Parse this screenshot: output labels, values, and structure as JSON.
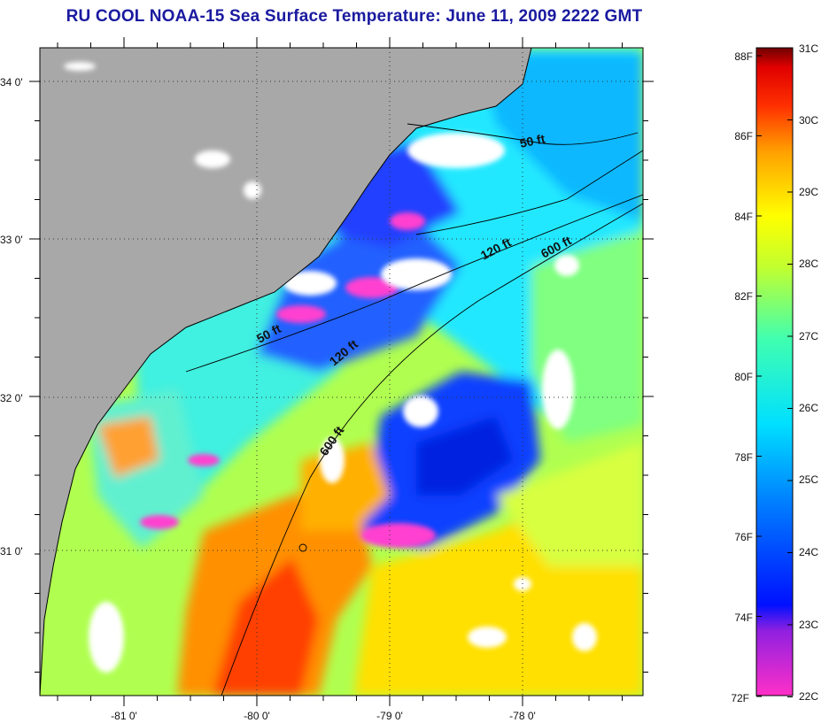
{
  "title": "RU COOL  NOAA-15  Sea Surface Temperature:  June 11, 2009 2222 GMT",
  "axes": {
    "lon_labels": [
      "-81 0'",
      "-80 0'",
      "-79 0'",
      "-78 0'"
    ],
    "lat_labels": [
      "34 0'",
      "33 0'",
      "32 0'",
      "31 0'"
    ]
  },
  "depth_contours": [
    {
      "label": "50 ft"
    },
    {
      "label": "50 ft"
    },
    {
      "label": "120 ft"
    },
    {
      "label": "120 ft"
    },
    {
      "label": "600 ft"
    },
    {
      "label": "600 ft"
    }
  ],
  "colorbar": {
    "fahrenheit_labels": [
      "88F",
      "86F",
      "84F",
      "82F",
      "80F",
      "78F",
      "76F",
      "74F",
      "72F"
    ],
    "celsius_labels": [
      "31C",
      "30C",
      "29C",
      "28C",
      "27C",
      "26C",
      "25C",
      "24C",
      "23C",
      "22C"
    ],
    "colors": [
      "#ff30c8",
      "#9020e0",
      "#0010ff",
      "#0080ff",
      "#00e0ff",
      "#40ffb0",
      "#c0ff30",
      "#ffff00",
      "#ffa000",
      "#ff3000",
      "#e00000",
      "#700000"
    ]
  },
  "land_color": "#a8a8a8",
  "cloud_color": "#ffffff"
}
